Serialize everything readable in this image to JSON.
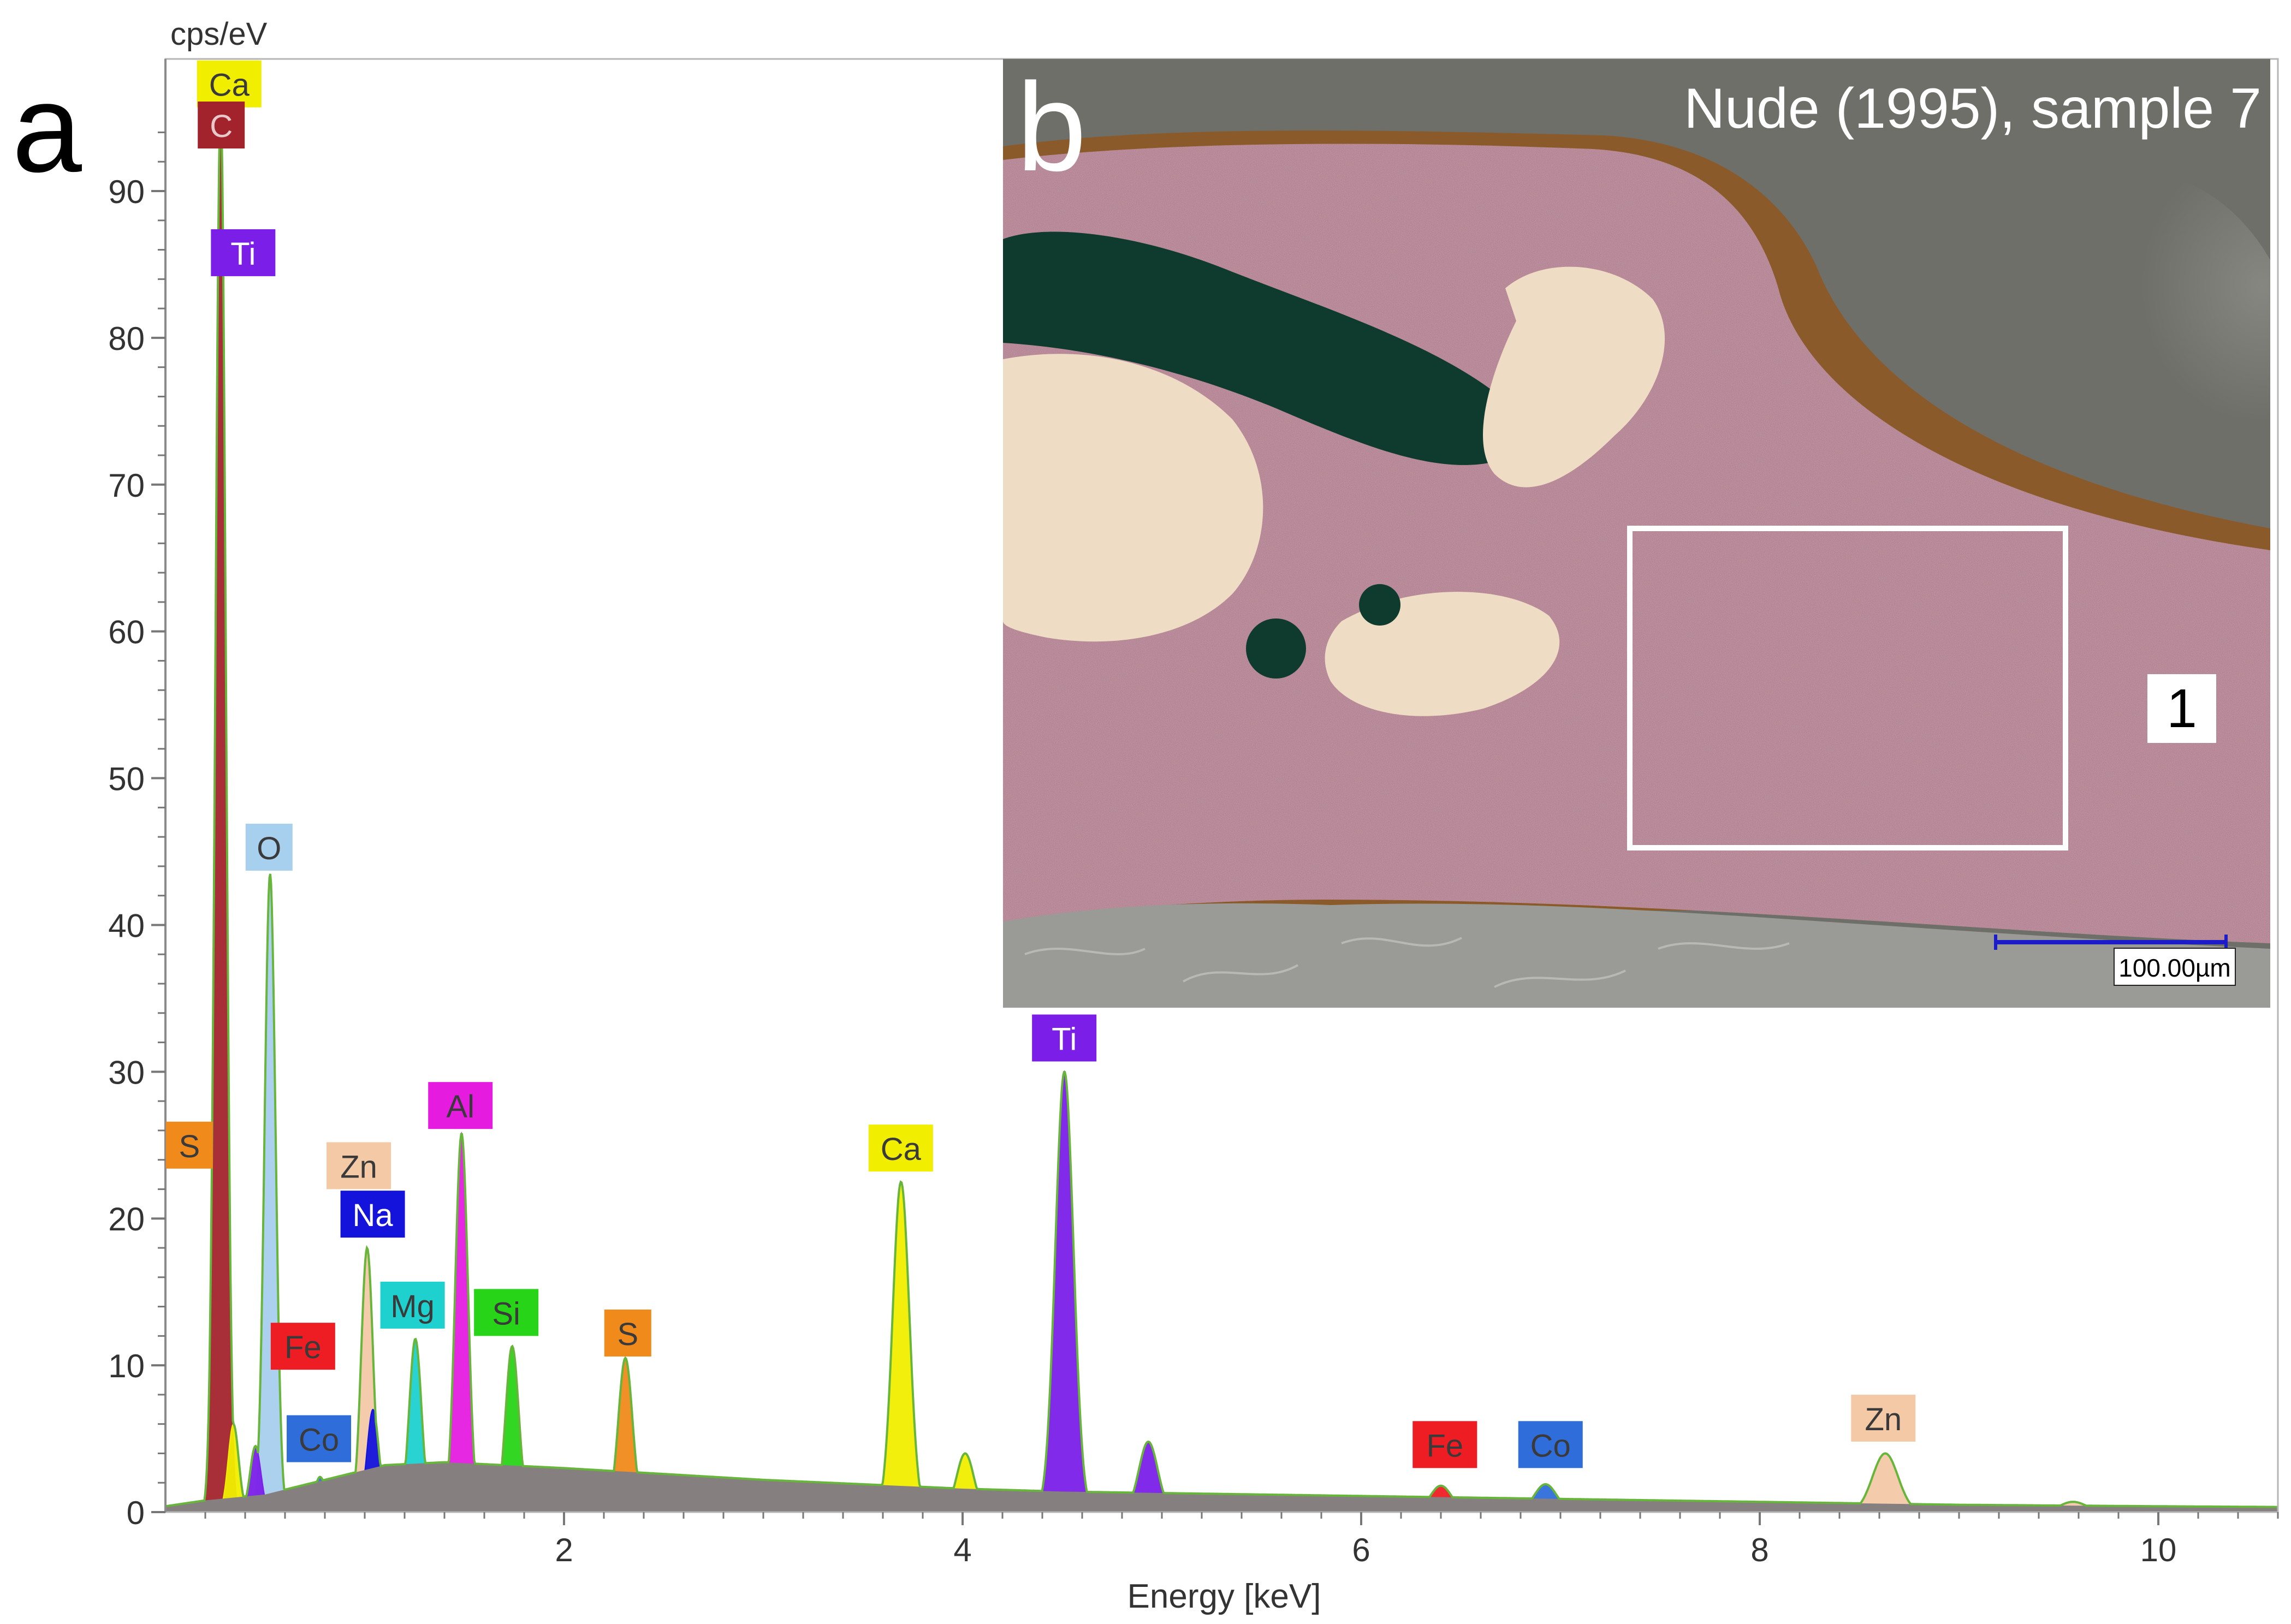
{
  "chart_data": {
    "type": "area",
    "title": "",
    "xlabel": "Energy [keV]",
    "ylabel": "cps/eV",
    "xlim": [
      0,
      10.6
    ],
    "ylim": [
      0,
      99
    ],
    "xticks": [
      2,
      4,
      6,
      8,
      10
    ],
    "yticks": [
      0,
      10,
      20,
      30,
      40,
      50,
      60,
      70,
      80,
      90
    ],
    "grid": false,
    "background": {
      "points": [
        [
          0.0,
          0.4
        ],
        [
          0.2,
          0.8
        ],
        [
          0.5,
          1.2
        ],
        [
          0.8,
          2.2
        ],
        [
          1.1,
          3.2
        ],
        [
          1.4,
          3.4
        ],
        [
          1.7,
          3.2
        ],
        [
          2.0,
          3.0
        ],
        [
          2.5,
          2.6
        ],
        [
          3.0,
          2.2
        ],
        [
          3.5,
          1.9
        ],
        [
          4.0,
          1.6
        ],
        [
          4.5,
          1.4
        ],
        [
          5.0,
          1.3
        ],
        [
          5.5,
          1.2
        ],
        [
          6.0,
          1.1
        ],
        [
          7.0,
          0.9
        ],
        [
          8.0,
          0.7
        ],
        [
          9.0,
          0.5
        ],
        [
          10.0,
          0.4
        ],
        [
          10.6,
          0.35
        ]
      ],
      "color": "#85807f"
    },
    "peaks": [
      {
        "element": "C",
        "energy": 0.277,
        "height": 96.0,
        "color": "#a3232d",
        "labeled": true
      },
      {
        "element": "Ca",
        "energy": 0.341,
        "height": 6.0,
        "color": "#f1ee00",
        "labeled": true
      },
      {
        "element": "Ti",
        "energy": 0.452,
        "height": 4.5,
        "color": "#7b1fe8",
        "labeled": true
      },
      {
        "element": "O",
        "energy": 0.525,
        "height": 43.5,
        "color": "#a7cfee",
        "labeled": true
      },
      {
        "element": "Fe",
        "energy": 0.705,
        "height": 1.8,
        "color": "#ee1d24",
        "labeled": true
      },
      {
        "element": "Co",
        "energy": 0.776,
        "height": 2.4,
        "color": "#2f6ddb",
        "labeled": true
      },
      {
        "element": "Zn",
        "energy": 1.012,
        "height": 18.0,
        "color": "#f4c9a6",
        "labeled": true
      },
      {
        "element": "Na",
        "energy": 1.041,
        "height": 7.0,
        "color": "#1313dc",
        "labeled": true
      },
      {
        "element": "Mg",
        "energy": 1.254,
        "height": 11.8,
        "color": "#1ed1cf",
        "labeled": true
      },
      {
        "element": "Al",
        "energy": 1.486,
        "height": 25.8,
        "color": "#e51ce0",
        "labeled": true
      },
      {
        "element": "Si",
        "energy": 1.74,
        "height": 11.3,
        "color": "#27d417",
        "labeled": true
      },
      {
        "element": "S",
        "energy": 2.308,
        "height": 10.5,
        "color": "#f08a1b",
        "labeled": true
      },
      {
        "element": "Ca",
        "energy": 3.691,
        "height": 22.5,
        "color": "#f1ee00",
        "labeled": true
      },
      {
        "element": "Ca",
        "energy": 4.013,
        "height": 4.0,
        "color": "#f1ee00",
        "labeled": false
      },
      {
        "element": "Ti",
        "energy": 4.511,
        "height": 30.0,
        "color": "#7b1fe8",
        "labeled": true
      },
      {
        "element": "Ti",
        "energy": 4.932,
        "height": 4.8,
        "color": "#7b1fe8",
        "labeled": false
      },
      {
        "element": "Fe",
        "energy": 6.4,
        "height": 1.8,
        "color": "#ee1d24",
        "labeled": true
      },
      {
        "element": "Co",
        "energy": 6.925,
        "height": 1.9,
        "color": "#2f6ddb",
        "labeled": true
      },
      {
        "element": "Zn",
        "energy": 8.63,
        "height": 4.0,
        "color": "#f4c9a6",
        "labeled": true
      },
      {
        "element": "Zn",
        "energy": 9.572,
        "height": 0.7,
        "color": "#f4c9a6",
        "labeled": false
      }
    ],
    "labels": [
      {
        "text": "Ca",
        "color": "#f1ee00",
        "text_color": "#3a3a3a",
        "x": 0.32,
        "y": 97.3
      },
      {
        "text": "C",
        "color": "#a3232d",
        "text_color": "#e8c8c8",
        "x": 0.28,
        "y": 94.5
      },
      {
        "text": "Ti",
        "color": "#7b1fe8",
        "text_color": "#ffffff",
        "x": 0.39,
        "y": 85.8
      },
      {
        "text": "O",
        "color": "#a7cfee",
        "text_color": "#3a3a3a",
        "x": 0.52,
        "y": 45.3
      },
      {
        "text": "S",
        "color": "#f08a1b",
        "text_color": "#3a3a3a",
        "x": 0.12,
        "y": 25.0
      },
      {
        "text": "Zn",
        "color": "#f4c9a6",
        "text_color": "#3a3a3a",
        "x": 0.97,
        "y": 23.6
      },
      {
        "text": "Na",
        "color": "#1313dc",
        "text_color": "#ffffff",
        "x": 1.04,
        "y": 20.3
      },
      {
        "text": "Al",
        "color": "#e51ce0",
        "text_color": "#3a3a3a",
        "x": 1.48,
        "y": 27.7
      },
      {
        "text": "Mg",
        "color": "#1ed1cf",
        "text_color": "#3a3a3a",
        "x": 1.24,
        "y": 14.1
      },
      {
        "text": "Si",
        "color": "#27d417",
        "text_color": "#3a3a3a",
        "x": 1.71,
        "y": 13.6
      },
      {
        "text": "Fe",
        "color": "#ee1d24",
        "text_color": "#3a3a3a",
        "x": 0.69,
        "y": 11.3
      },
      {
        "text": "Co",
        "color": "#2f6ddb",
        "text_color": "#3a3a3a",
        "x": 0.77,
        "y": 5.0
      },
      {
        "text": "S",
        "color": "#f08a1b",
        "text_color": "#3a3a3a",
        "x": 2.32,
        "y": 12.2
      },
      {
        "text": "Ca",
        "color": "#f1ee00",
        "text_color": "#3a3a3a",
        "x": 3.69,
        "y": 24.8
      },
      {
        "text": "Ti",
        "color": "#7b1fe8",
        "text_color": "#ffffff",
        "x": 4.51,
        "y": 32.3
      },
      {
        "text": "Fe",
        "color": "#ee1d24",
        "text_color": "#3a3a3a",
        "x": 6.42,
        "y": 4.6
      },
      {
        "text": "Co",
        "color": "#2f6ddb",
        "text_color": "#3a3a3a",
        "x": 6.95,
        "y": 4.6
      },
      {
        "text": "Zn",
        "color": "#f4c9a6",
        "text_color": "#3a3a3a",
        "x": 8.62,
        "y": 6.4
      }
    ],
    "outline_color": "#67b53a"
  },
  "figure": {
    "panel_a_letter": "a",
    "panel_b_letter": "b"
  },
  "micrograph": {
    "title": "Nude (1995), sample 7",
    "region_label": "1",
    "scale_bar_label": "100.00µm",
    "scale_bar_color": "#1c1cc8",
    "colors": {
      "embedding_resin": "#6e6f68",
      "pink_layer": "#c99aa6",
      "green_pigment": "#0f3a2e",
      "cream_inclusion": "#efdcc4",
      "substrate": "#9a9a97",
      "brown_edge": "#8b5a2b"
    }
  }
}
